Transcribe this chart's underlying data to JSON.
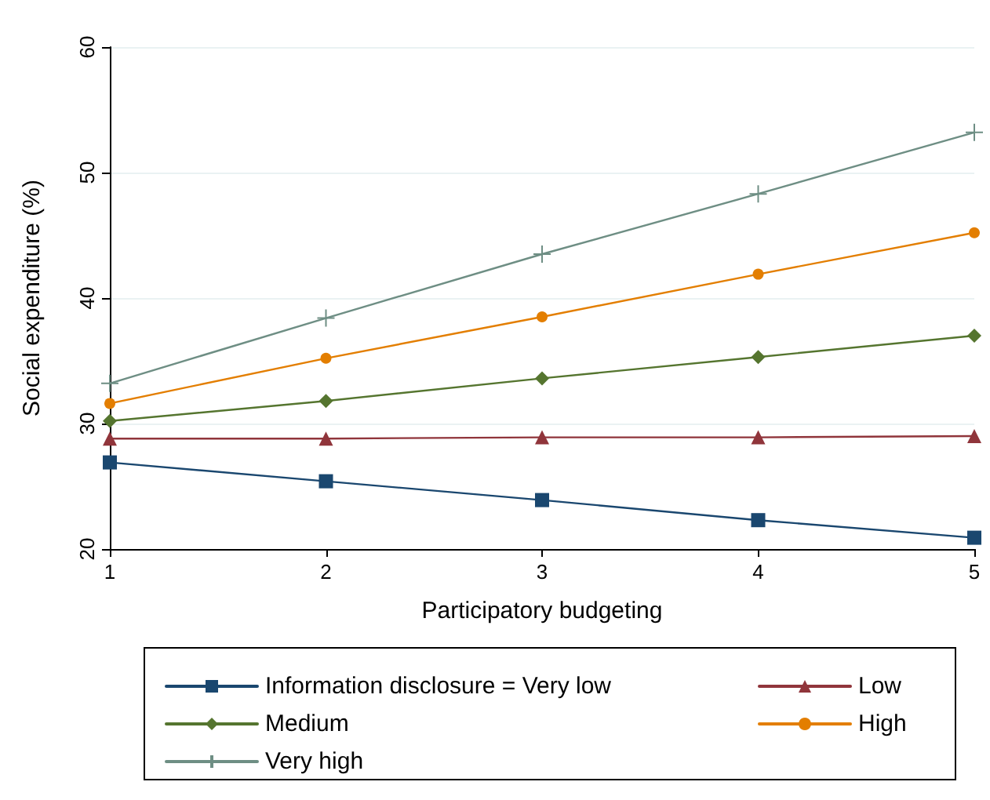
{
  "chart_data": {
    "type": "line",
    "xlabel": "Participatory budgeting",
    "ylabel": "Social expenditure (%)",
    "x": [
      1,
      2,
      3,
      4,
      5
    ],
    "xlim": [
      1,
      5
    ],
    "xticks": [
      1,
      2,
      3,
      4,
      5
    ],
    "ylim": [
      20,
      60
    ],
    "yticks": [
      20,
      30,
      40,
      50,
      60
    ],
    "grid": "y",
    "legend": "bottom",
    "series": [
      {
        "name": "Information disclosure = Very low",
        "color": "#1a476f",
        "marker": "square",
        "values": [
          26.9,
          25.4,
          23.9,
          22.3,
          20.9
        ]
      },
      {
        "name": "Low",
        "color": "#90353b",
        "marker": "triangle",
        "values": [
          28.8,
          28.8,
          28.9,
          28.9,
          29.0
        ]
      },
      {
        "name": "Medium",
        "color": "#55752f",
        "marker": "diamond",
        "values": [
          30.2,
          31.8,
          33.6,
          35.3,
          37.0
        ]
      },
      {
        "name": "High",
        "color": "#e37e00",
        "marker": "circle",
        "values": [
          31.6,
          35.2,
          38.5,
          41.9,
          45.2
        ]
      },
      {
        "name": "Very high",
        "color": "#6e8e84",
        "marker": "cross",
        "values": [
          33.2,
          38.4,
          43.5,
          48.3,
          53.2
        ]
      }
    ]
  }
}
